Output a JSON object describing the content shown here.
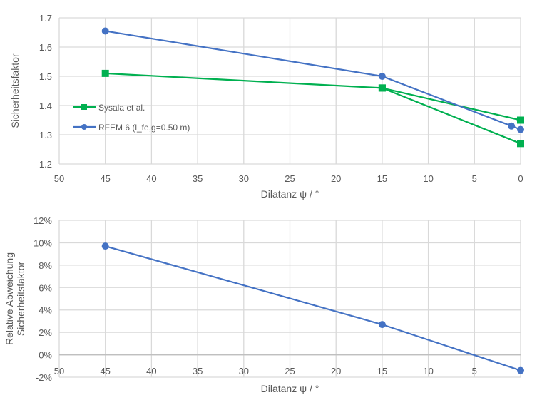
{
  "chart_data": [
    {
      "type": "line",
      "xlabel": "Dilatanz ψ  / °",
      "ylabel": "Sicherheitsfaktor",
      "xlim": [
        50,
        0
      ],
      "ylim": [
        1.2,
        1.7
      ],
      "x_reversed": true,
      "xticks": [
        "50",
        "45",
        "40",
        "35",
        "30",
        "25",
        "20",
        "15",
        "10",
        "5",
        "0"
      ],
      "yticks": [
        "1.2",
        "1.3",
        "1.4",
        "1.5",
        "1.6",
        "1.7"
      ],
      "grid": true,
      "legend_position": "center-left",
      "series": [
        {
          "name": "Sysala et al.",
          "color": "#00b050",
          "marker": "square",
          "points": [
            [
              45,
              1.51
            ],
            [
              15,
              1.46
            ],
            [
              0,
              1.27
            ],
            [
              15,
              1.46
            ],
            [
              0,
              1.35
            ]
          ]
        },
        {
          "name": "RFEM 6 (l_fe,g=0.50 m)",
          "color": "#4472c4",
          "marker": "circle",
          "points": [
            [
              45,
              1.655
            ],
            [
              15,
              1.5
            ],
            [
              1,
              1.33
            ],
            [
              0,
              1.318
            ]
          ]
        }
      ]
    },
    {
      "type": "line",
      "xlabel": "Dilatanz ψ  / °",
      "ylabel": [
        "Relative Abweichung",
        "Sicherheitsfaktor"
      ],
      "xlim": [
        50,
        0
      ],
      "ylim": [
        -2,
        12
      ],
      "x_reversed": true,
      "xticks": [
        "50",
        "45",
        "40",
        "35",
        "30",
        "25",
        "20",
        "15",
        "10",
        "5",
        "0"
      ],
      "yticks": [
        "-2%",
        "0%",
        "2%",
        "4%",
        "6%",
        "8%",
        "10%",
        "12%"
      ],
      "grid": true,
      "series": [
        {
          "color": "#4472c4",
          "marker": "circle",
          "points": [
            [
              45,
              9.7
            ],
            [
              15,
              2.7
            ],
            [
              0,
              -1.4
            ]
          ]
        }
      ]
    }
  ]
}
